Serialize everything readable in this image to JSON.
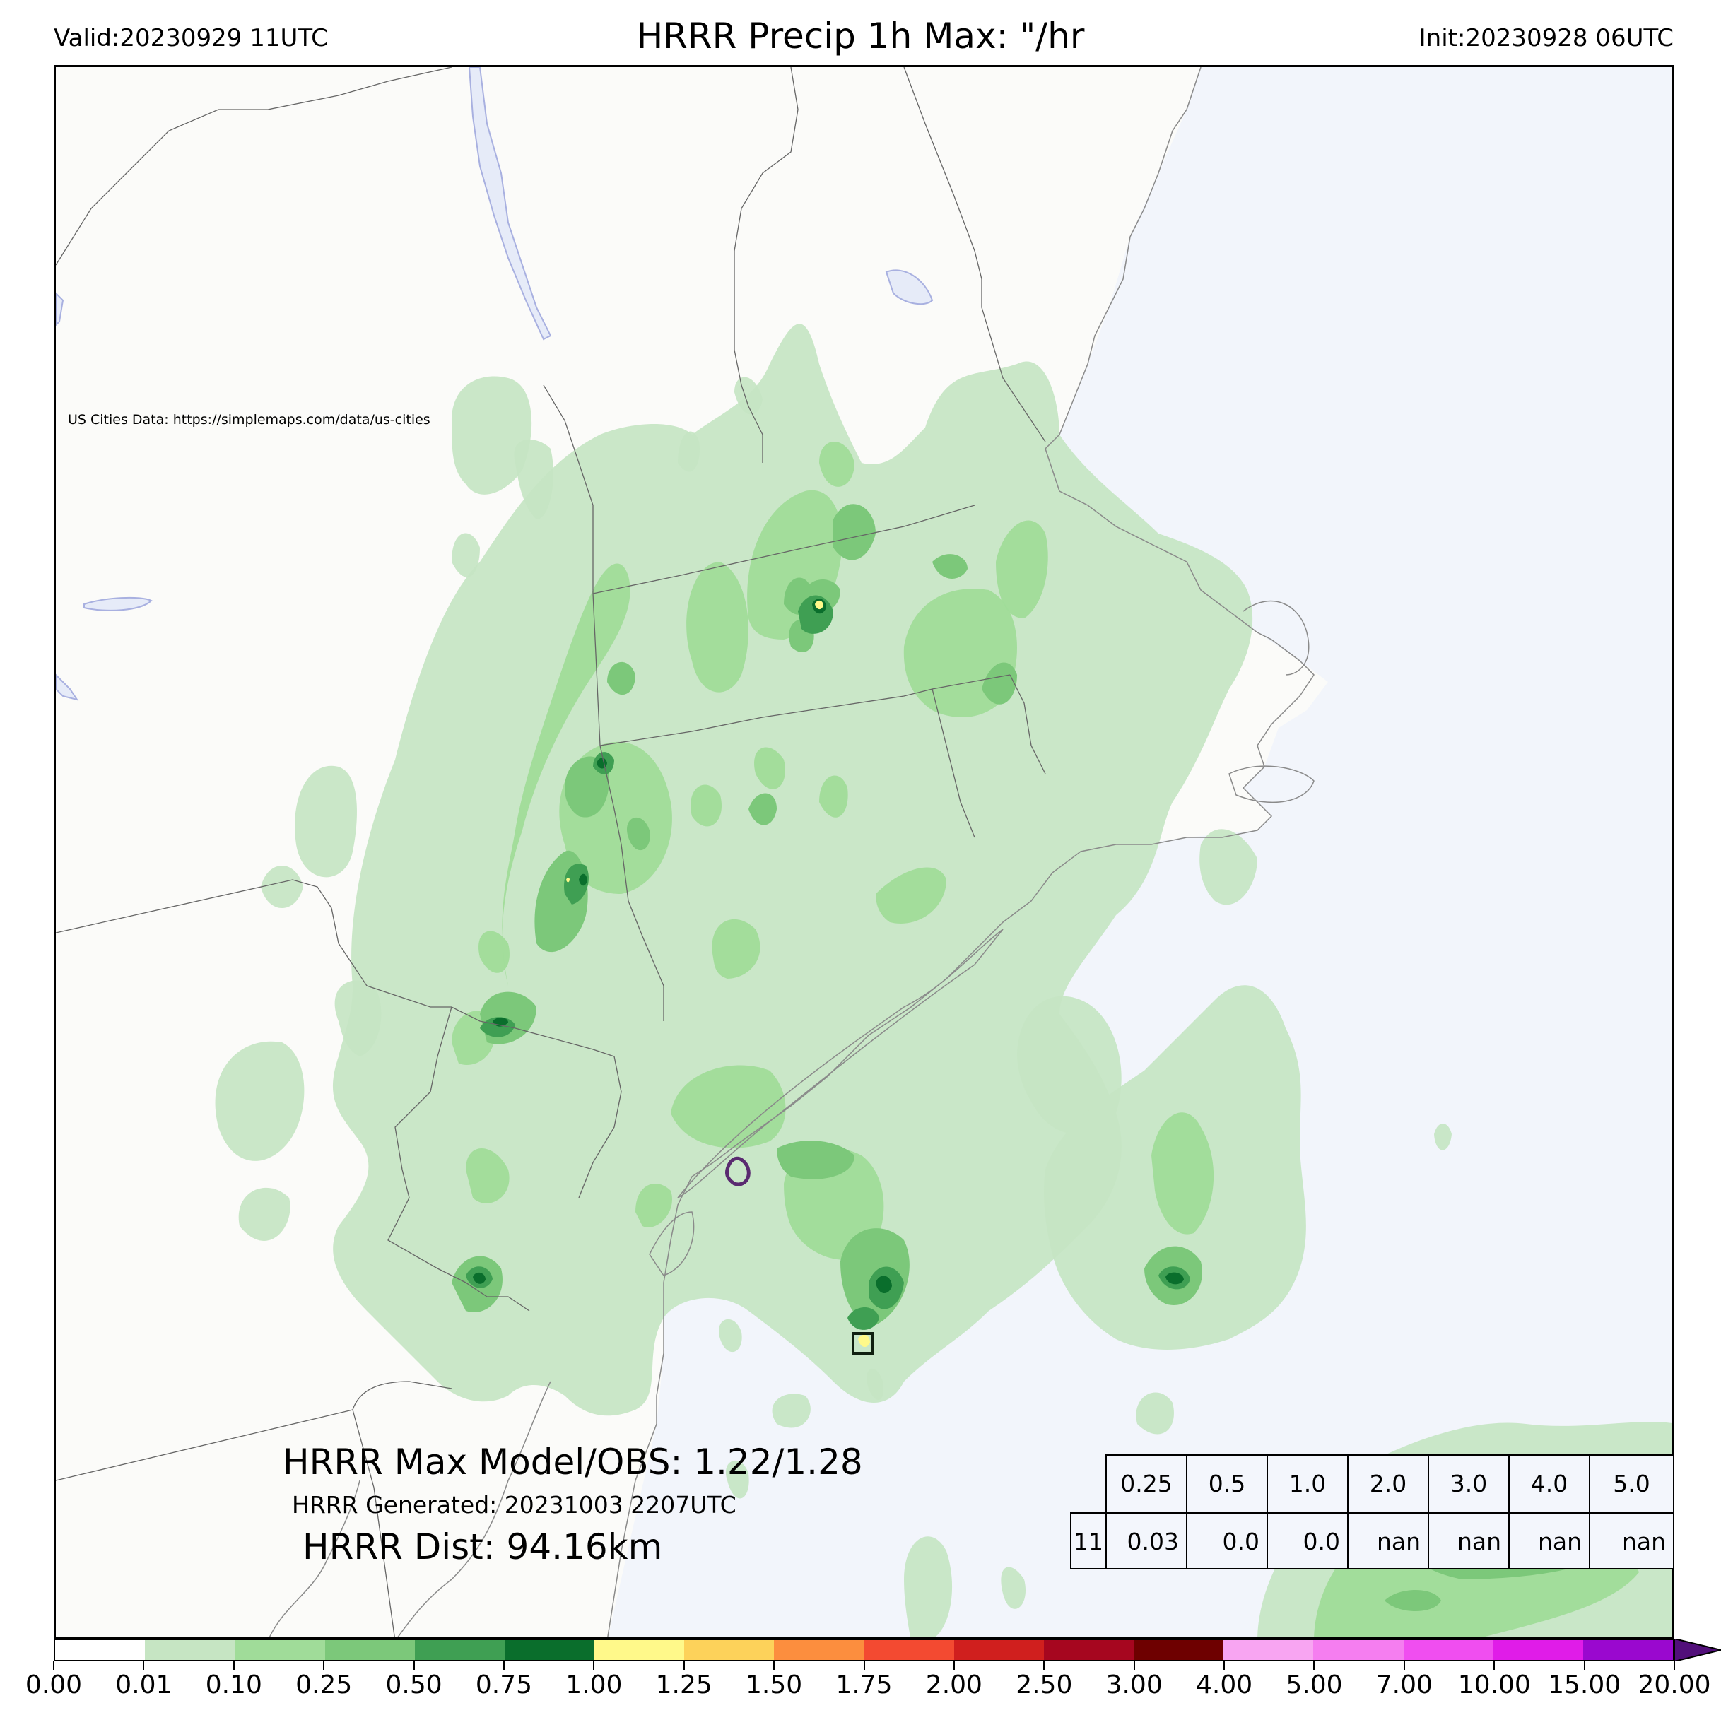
{
  "header": {
    "valid": "Valid:20230929 11UTC",
    "title": "HRRR Precip 1h Max: \"/hr",
    "init": "Init:20230928 06UTC"
  },
  "map": {
    "attribution": "US Cities Data: https://simplemaps.com/data/us-cities",
    "land_color": "#fbfbf9",
    "ocean_color": "#f2f5fb",
    "lake_color": "#e6ebf8"
  },
  "summary": {
    "max_line": "HRRR Max Model/OBS: 1.22/1.28",
    "generated_line": "HRRR Generated: 20231003 2207UTC",
    "dist_line": "HRRR Dist: 94.16km"
  },
  "threshold_table": {
    "headers": [
      "0.25",
      "0.5",
      "1.0",
      "2.0",
      "3.0",
      "4.0",
      "5.0"
    ],
    "row_label": "11",
    "values": [
      "0.03",
      "0.0",
      "0.0",
      "nan",
      "nan",
      "nan",
      "nan"
    ]
  },
  "colorbar": {
    "labels": [
      "0.00",
      "0.01",
      "0.10",
      "0.25",
      "0.50",
      "0.75",
      "1.00",
      "1.25",
      "1.50",
      "1.75",
      "2.00",
      "2.50",
      "3.00",
      "4.00",
      "5.00",
      "7.00",
      "10.00",
      "15.00",
      "20.00"
    ],
    "colors": [
      "#ffffff",
      "#c6e5c3",
      "#a0dc99",
      "#7cc87a",
      "#3f9f53",
      "#0a6e2c",
      "#fff98a",
      "#fdd25a",
      "#fc8e3e",
      "#f34a31",
      "#d01f1e",
      "#a6061f",
      "#6e0000",
      "#f8a5f2",
      "#f57ef0",
      "#f04ef0",
      "#e01ce8",
      "#9a08cf"
    ],
    "extend_color": "#520f7a"
  }
}
